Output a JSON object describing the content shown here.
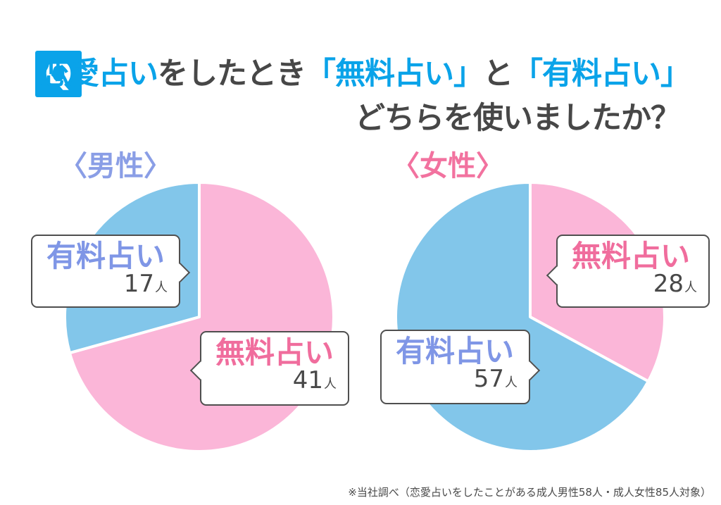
{
  "colors": {
    "accent_blue": "#0aa3e9",
    "dark_text": "#474747",
    "pie_pink": "#fbb6d8",
    "pie_blue": "#82c6ea",
    "bubble_label_blue": "#7f96e6",
    "bubble_label_pink": "#f06d9d",
    "male_heading_blue": "#8a9ee6",
    "female_heading_pink": "#f2729f"
  },
  "header": {
    "q_badge": "Q",
    "title_segments": [
      {
        "text": "恋愛占い",
        "style": "blue"
      },
      {
        "text": "をしたとき",
        "style": "dark"
      },
      {
        "text": "「無料占い」",
        "style": "blue"
      },
      {
        "text": "と",
        "style": "dark"
      },
      {
        "text": "「有料占い」",
        "style": "blue"
      }
    ],
    "title_line2": "どちらを使いましたか？"
  },
  "chart_data": [
    {
      "type": "pie",
      "group": "male",
      "title": "〈男性〉",
      "labels": [
        "無料占い",
        "有料占い"
      ],
      "values": [
        41,
        17
      ],
      "unit": "人",
      "total": 58,
      "slice_colors": [
        "#fbb6d8",
        "#82c6ea"
      ],
      "label_colors": [
        "#f06d9d",
        "#7f96e6"
      ],
      "start_angle": "top",
      "direction": "clockwise",
      "legend_position": "callout-bubbles"
    },
    {
      "type": "pie",
      "group": "female",
      "title": "〈女性〉",
      "labels": [
        "無料占い",
        "有料占い"
      ],
      "values": [
        28,
        57
      ],
      "unit": "人",
      "total": 85,
      "slice_colors": [
        "#fbb6d8",
        "#82c6ea"
      ],
      "label_colors": [
        "#f06d9d",
        "#7f96e6"
      ],
      "start_angle": "top",
      "direction": "clockwise",
      "legend_position": "callout-bubbles"
    }
  ],
  "footer": {
    "note": "※当社調べ（恋愛占いをしたことがある成人男性58人・成人女性85人対象）"
  }
}
